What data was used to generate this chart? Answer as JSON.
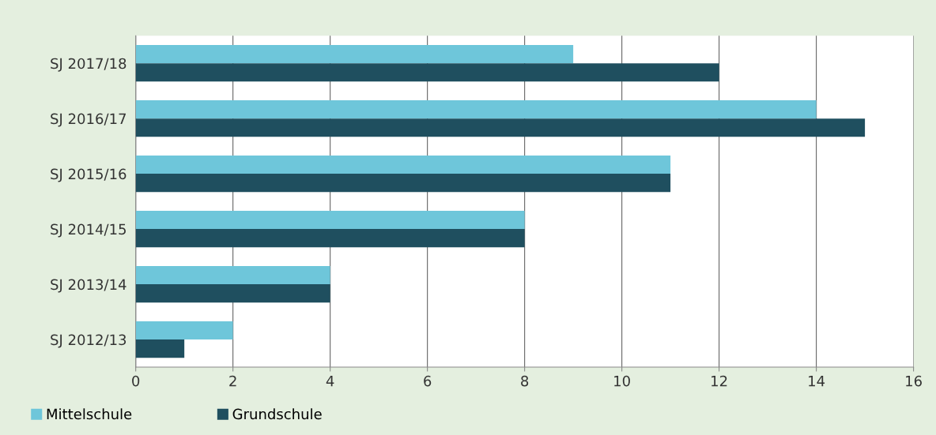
{
  "chart_data": {
    "type": "bar",
    "orientation": "horizontal",
    "categories": [
      "SJ 2017/18",
      "SJ 2016/17",
      "SJ 2015/16",
      "SJ 2014/15",
      "SJ 2013/14",
      "SJ 2012/13"
    ],
    "series": [
      {
        "name": "Mittelschule",
        "color": "#6ec6da",
        "values": [
          9,
          14,
          11,
          8,
          4,
          2
        ]
      },
      {
        "name": "Grundschule",
        "color": "#1f4f5f",
        "values": [
          12,
          15,
          11,
          8,
          4,
          1
        ]
      }
    ],
    "xlim": [
      0,
      16
    ],
    "xticks": [
      0,
      2,
      4,
      6,
      8,
      10,
      12,
      14,
      16
    ],
    "grid": "x",
    "legend": "bottom left"
  }
}
